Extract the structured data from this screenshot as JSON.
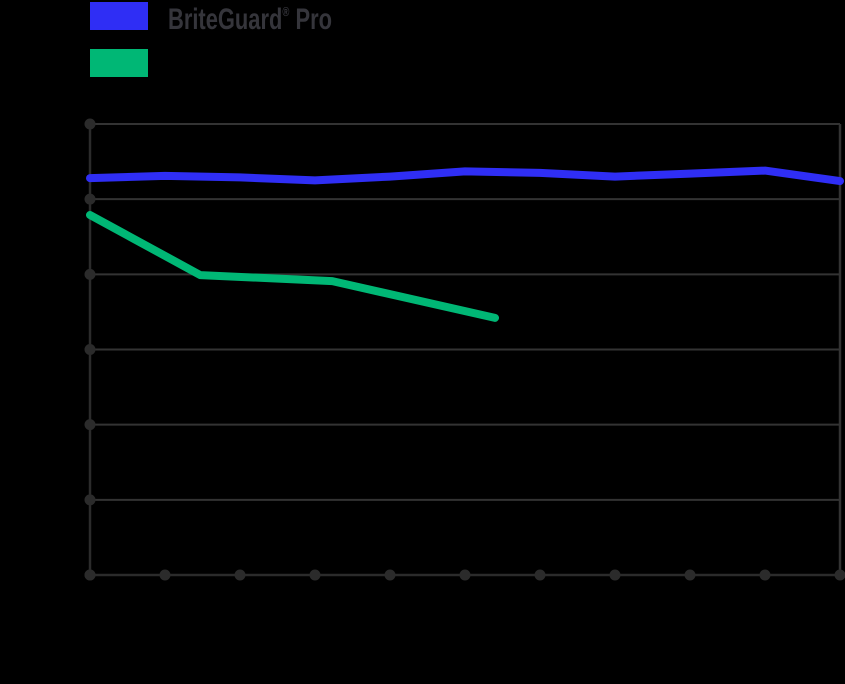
{
  "canvas": {
    "background": "#000000"
  },
  "legend": {
    "position": "top-left",
    "text_color": "#35353b",
    "items": [
      {
        "label": "BriteGuard® Pro",
        "brand": "BriteGuard",
        "reg": "®",
        "suffix": " Pro",
        "color": "#2f2ef5"
      },
      {
        "label": "",
        "brand": "",
        "reg": "",
        "suffix": "",
        "color": "#00b775"
      }
    ]
  },
  "chart_data": {
    "type": "line",
    "title": "",
    "xlabel": "",
    "ylabel": "",
    "xlim": [
      0,
      10
    ],
    "ylim": [
      0,
      6
    ],
    "x_tick_count": 11,
    "y_gridline_count": 7,
    "grid": true,
    "axis_tick_labels_visible": false,
    "legend_position": "top-left",
    "colors": {
      "gridline": "#333333",
      "axis": "#2b2b2b",
      "tick_dot": "#2b2b2b"
    },
    "series": [
      {
        "name": "BriteGuard® Pro",
        "color": "#2f2ef5",
        "line_width": 8,
        "x": [
          0,
          1,
          2,
          3,
          4,
          5,
          6,
          7,
          8,
          9,
          10
        ],
        "y": [
          5.28,
          5.31,
          5.29,
          5.25,
          5.3,
          5.37,
          5.35,
          5.3,
          5.34,
          5.38,
          5.24
        ]
      },
      {
        "name": "",
        "color": "#00b775",
        "line_width": 8,
        "x": [
          0,
          1.47,
          3.23,
          5.4
        ],
        "y": [
          4.79,
          3.99,
          3.91,
          3.42
        ]
      }
    ]
  }
}
